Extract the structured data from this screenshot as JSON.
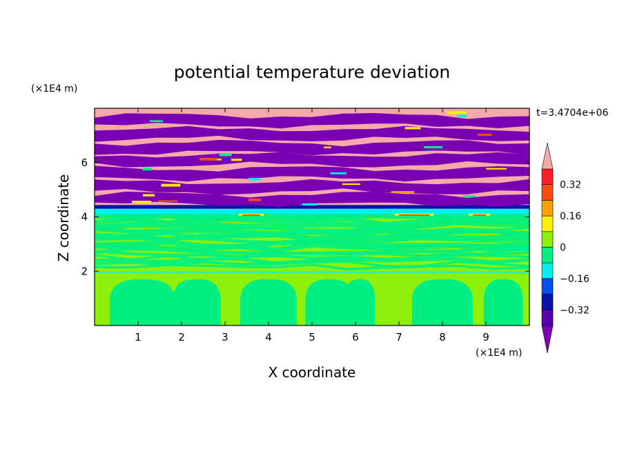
{
  "chart_data": {
    "type": "heatmap",
    "title": "potential temperature deviation",
    "xlabel": "X coordinate",
    "ylabel": "Z coordinate",
    "x_unit": "(×1E4 m)",
    "y_unit": "(×1E4 m)",
    "time_label": "t=3.4704e+06",
    "xlim": [
      0,
      10
    ],
    "ylim": [
      0,
      8
    ],
    "x_ticks": [
      1,
      2,
      3,
      4,
      5,
      6,
      7,
      8,
      9
    ],
    "y_ticks": [
      2,
      4,
      6
    ],
    "colorbar": {
      "levels": [
        -0.4,
        -0.32,
        -0.24,
        -0.16,
        -0.08,
        0,
        0.08,
        0.16,
        0.24,
        0.32,
        0.4
      ],
      "tick_values": [
        0.32,
        0.16,
        0,
        -0.16,
        -0.32
      ],
      "tick_labels": [
        "0.32",
        "0.16",
        "0",
        "−0.16",
        "−0.32"
      ],
      "colors": [
        "#7a00b4",
        "#5a00aa",
        "#0a14a8",
        "#0050f0",
        "#00f0f0",
        "#00ee82",
        "#8cf00a",
        "#fff000",
        "#ffa000",
        "#ff4a10",
        "#ff1e28",
        "#f4aaaa"
      ],
      "extend": "both"
    },
    "regions": [
      {
        "z_range": [
          4.3,
          8
        ],
        "pattern": "alternating bands",
        "values": [
          0.4,
          -0.4
        ]
      },
      {
        "z_range": [
          4.1,
          4.3
        ],
        "pattern": "uniform",
        "values": [
          -0.32,
          -0.2
        ]
      },
      {
        "z_range": [
          2.0,
          4.1
        ],
        "pattern": "mixed",
        "values": [
          0.0,
          0.08
        ]
      },
      {
        "z_range": [
          0,
          2.0
        ],
        "pattern": "convective cells",
        "values": [
          0.0,
          0.08
        ]
      }
    ]
  }
}
